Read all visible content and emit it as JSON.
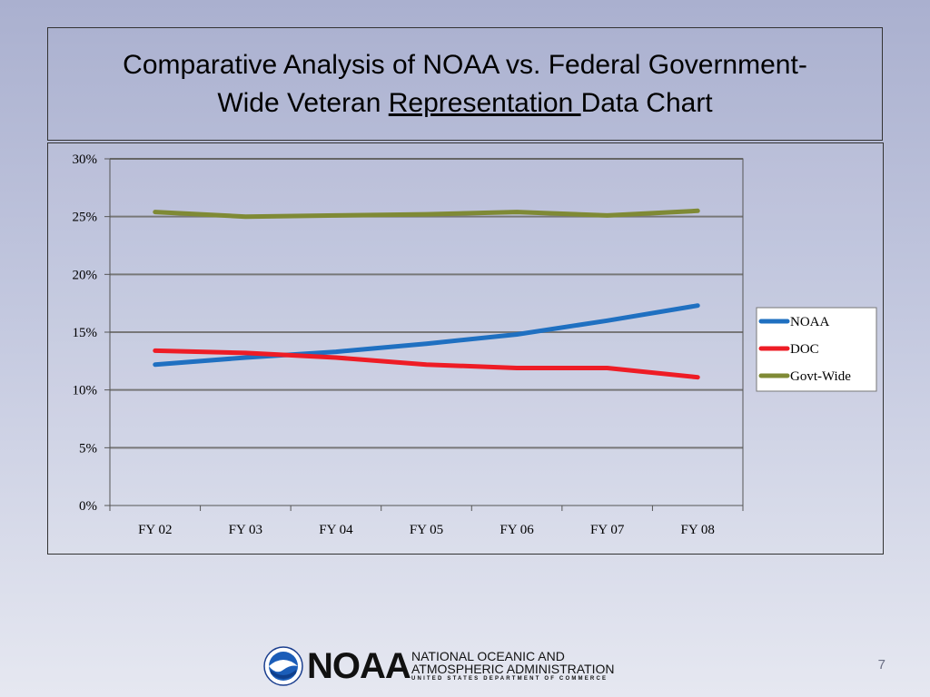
{
  "slide": {
    "title_part1": "Comparative Analysis of NOAA vs. Federal Government-",
    "title_part2_pre": "Wide Veteran ",
    "title_part2_underlined": "Representation ",
    "title_part2_post": "Data Chart",
    "slide_number": "7"
  },
  "footer": {
    "logo_word": "NOAA",
    "logo_line1": "NATIONAL OCEANIC AND",
    "logo_line2": "ATMOSPHERIC ADMINISTRATION",
    "logo_line3": "UNITED STATES DEPARTMENT OF COMMERCE"
  },
  "chart_data": {
    "type": "line",
    "categories": [
      "FY 02",
      "FY 03",
      "FY 04",
      "FY 05",
      "FY 06",
      "FY 07",
      "FY 08"
    ],
    "series": [
      {
        "name": "NOAA",
        "color": "#1f70c1",
        "values": [
          12.2,
          12.8,
          13.3,
          14.0,
          14.8,
          16.0,
          17.3
        ]
      },
      {
        "name": "DOC",
        "color": "#ee1c25",
        "values": [
          13.4,
          13.2,
          12.8,
          12.2,
          11.9,
          11.9,
          11.1
        ]
      },
      {
        "name": "Govt-Wide",
        "color": "#7f8a35",
        "values": [
          25.4,
          25.0,
          25.1,
          25.2,
          25.4,
          25.1,
          25.5
        ]
      }
    ],
    "y_ticks": [
      "0%",
      "5%",
      "10%",
      "15%",
      "20%",
      "25%",
      "30%"
    ],
    "ylim": [
      0,
      30
    ],
    "y_step": 5,
    "grid": true,
    "legend_position": "right",
    "title": "",
    "xlabel": "",
    "ylabel": ""
  }
}
